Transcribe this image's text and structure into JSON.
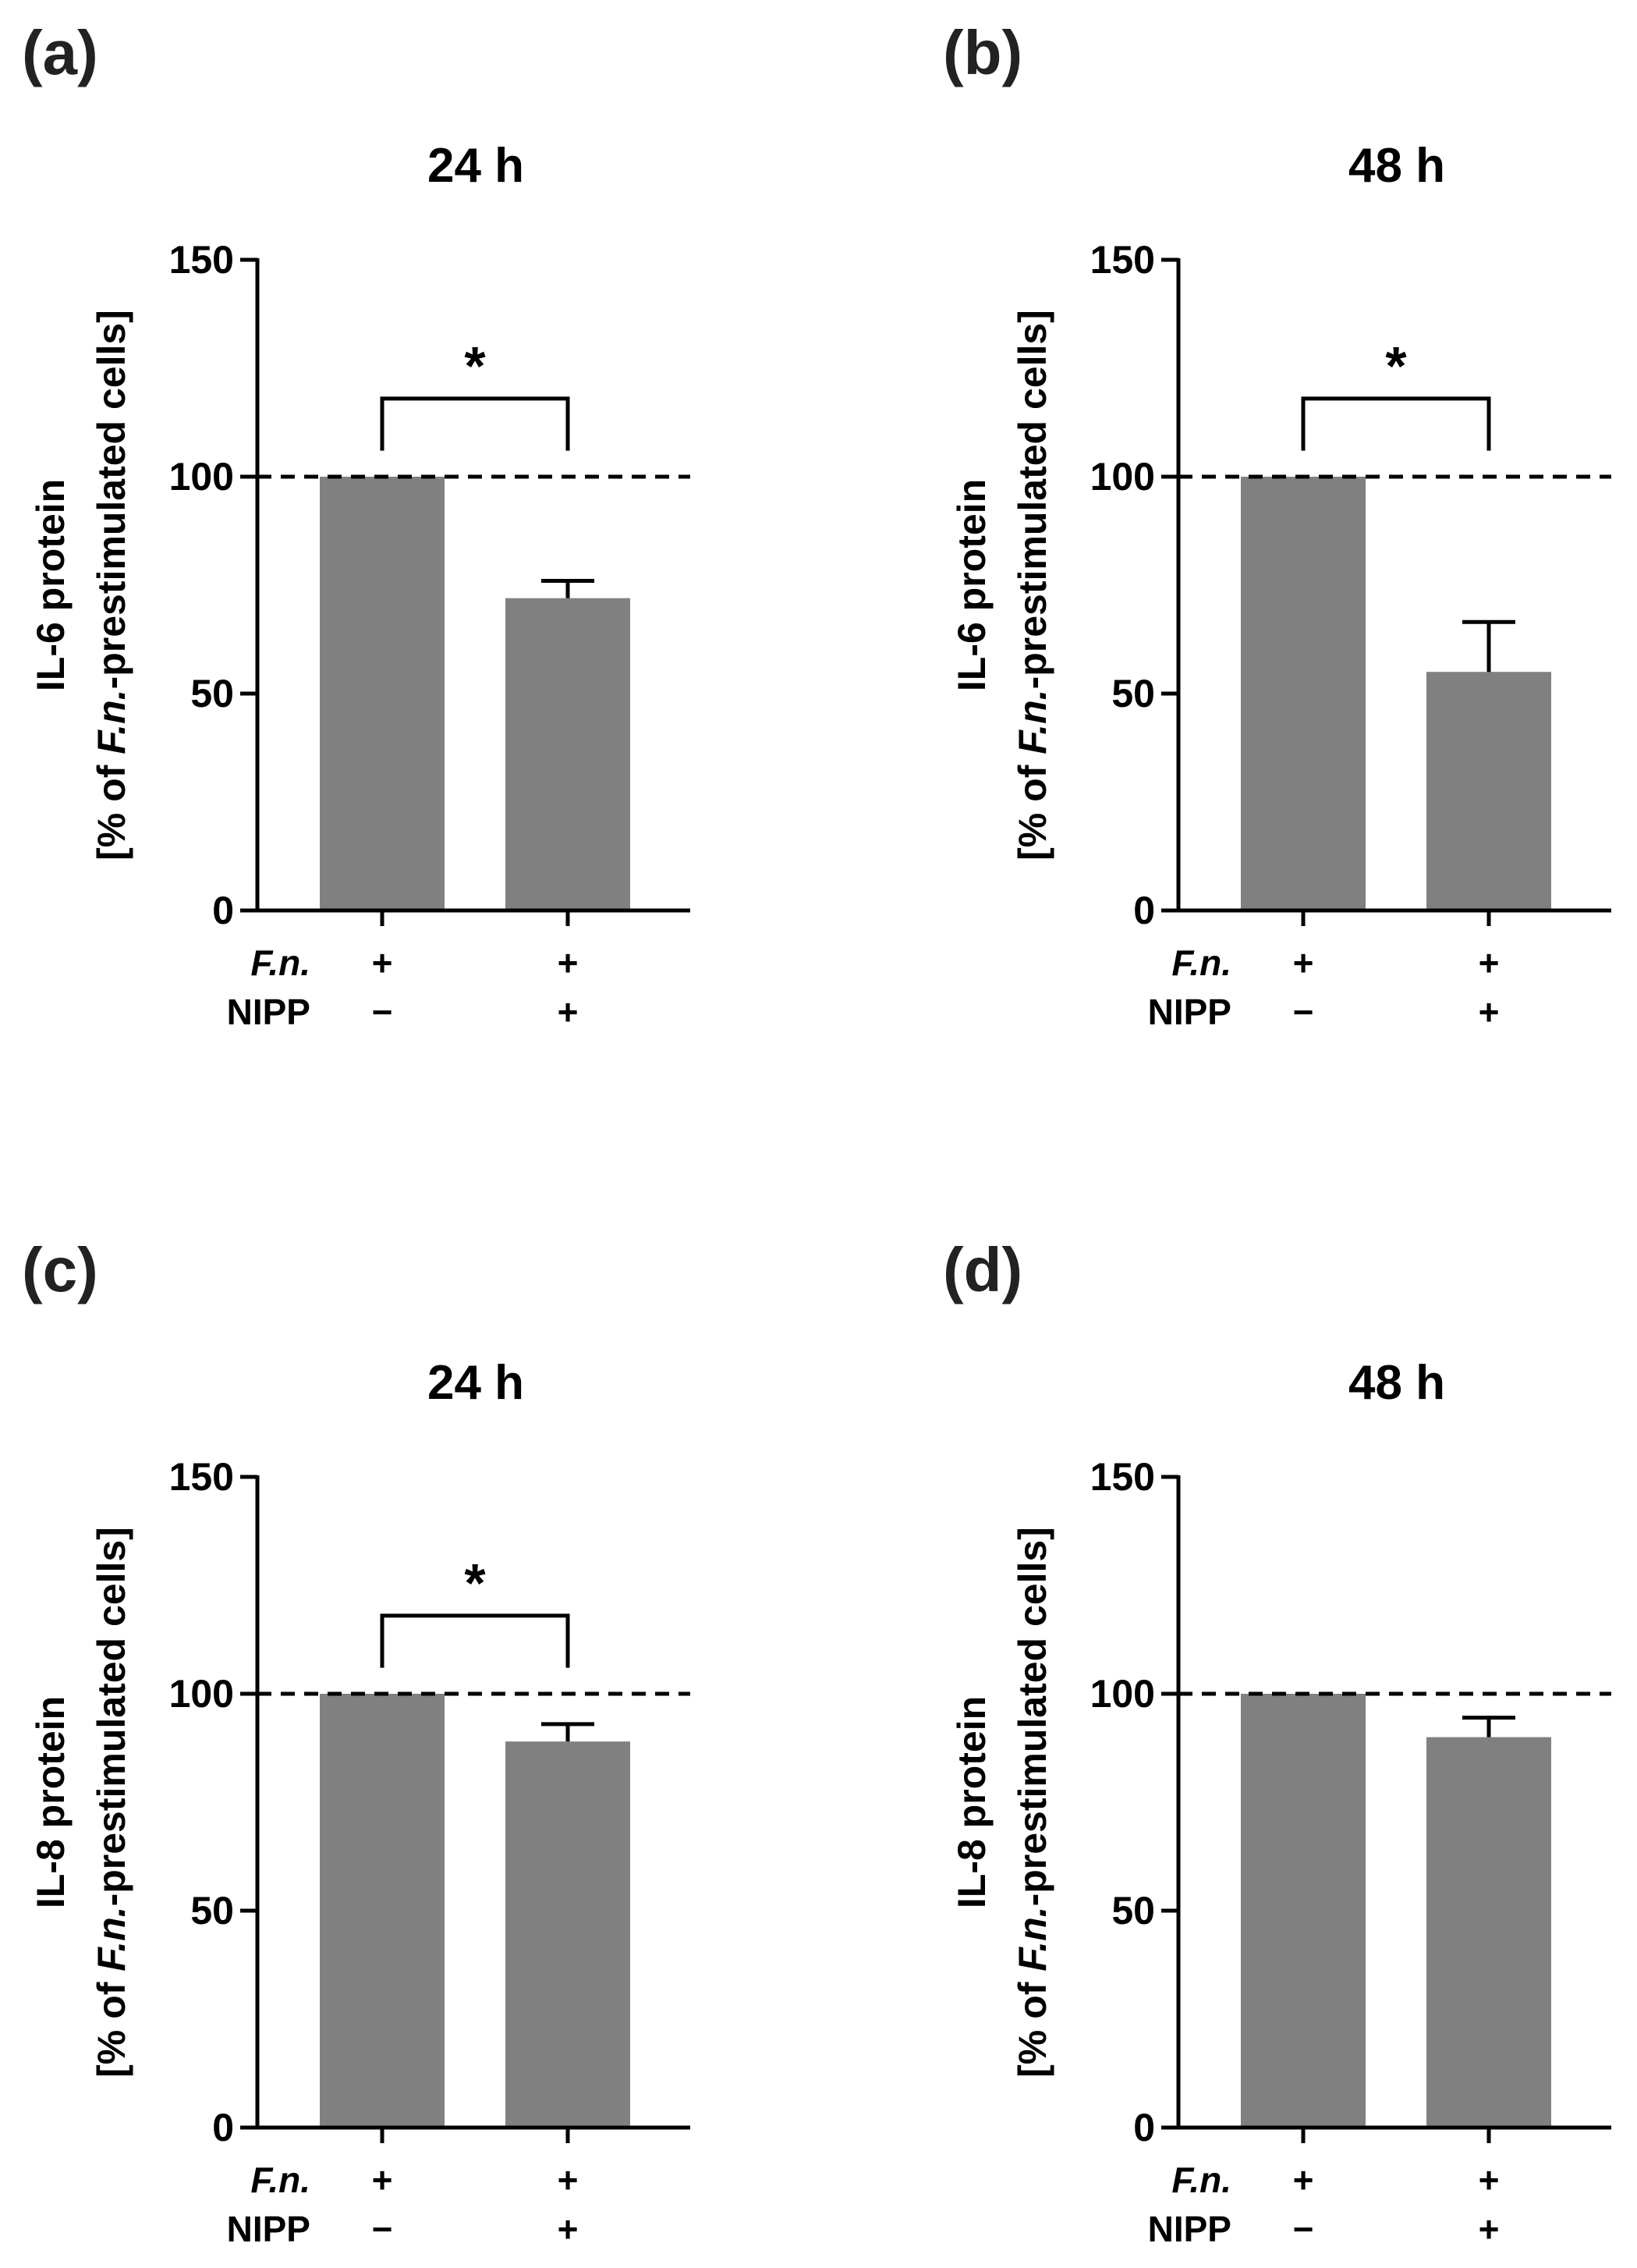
{
  "figure": {
    "row_labels": [
      "F.n.",
      "NIPP"
    ]
  },
  "chart_data": [
    {
      "type": "bar",
      "panel": "(a)",
      "title": "24 h",
      "ylabel_line1": "IL-6 protein",
      "ylabel_line2_prefix": "[% of ",
      "ylabel_line2_italic": "F.n.",
      "ylabel_line2_suffix": "-prestimulated cells]",
      "ylim": [
        0,
        150
      ],
      "yticks": [
        0,
        50,
        100,
        150
      ],
      "reference_line": 100,
      "categories": [
        "F.n. + / NIPP −",
        "F.n. + / NIPP +"
      ],
      "values": [
        100,
        72
      ],
      "errors": [
        0,
        4
      ],
      "fn": [
        "+",
        "+"
      ],
      "nipp": [
        "−",
        "+"
      ],
      "significance": "*",
      "bar_color": "#808080"
    },
    {
      "type": "bar",
      "panel": "(b)",
      "title": "48 h",
      "ylabel_line1": "IL-6 protein",
      "ylabel_line2_prefix": "[% of ",
      "ylabel_line2_italic": "F.n.",
      "ylabel_line2_suffix": "-prestimulated cells]",
      "ylim": [
        0,
        150
      ],
      "yticks": [
        0,
        50,
        100,
        150
      ],
      "reference_line": 100,
      "categories": [
        "F.n. + / NIPP −",
        "F.n. + / NIPP +"
      ],
      "values": [
        100,
        55
      ],
      "errors": [
        0,
        11.5
      ],
      "fn": [
        "+",
        "+"
      ],
      "nipp": [
        "−",
        "+"
      ],
      "significance": "*",
      "bar_color": "#808080"
    },
    {
      "type": "bar",
      "panel": "(c)",
      "title": "24 h",
      "ylabel_line1": "IL-8 protein",
      "ylabel_line2_prefix": "[% of ",
      "ylabel_line2_italic": "F.n.",
      "ylabel_line2_suffix": "-prestimulated cells]",
      "ylim": [
        0,
        150
      ],
      "yticks": [
        0,
        50,
        100,
        150
      ],
      "reference_line": 100,
      "categories": [
        "F.n. + / NIPP −",
        "F.n. + / NIPP +"
      ],
      "values": [
        100,
        89
      ],
      "errors": [
        0,
        4
      ],
      "fn": [
        "+",
        "+"
      ],
      "nipp": [
        "−",
        "+"
      ],
      "significance": "*",
      "bar_color": "#808080"
    },
    {
      "type": "bar",
      "panel": "(d)",
      "title": "48 h",
      "ylabel_line1": "IL-8 protein",
      "ylabel_line2_prefix": "[% of ",
      "ylabel_line2_italic": "F.n.",
      "ylabel_line2_suffix": "-prestimulated cells]",
      "ylim": [
        0,
        150
      ],
      "yticks": [
        0,
        50,
        100,
        150
      ],
      "reference_line": 100,
      "categories": [
        "F.n. + / NIPP −",
        "F.n. + / NIPP +"
      ],
      "values": [
        100,
        90
      ],
      "errors": [
        0,
        4.5
      ],
      "fn": [
        "+",
        "+"
      ],
      "nipp": [
        "−",
        "+"
      ],
      "significance": "",
      "bar_color": "#808080"
    }
  ]
}
